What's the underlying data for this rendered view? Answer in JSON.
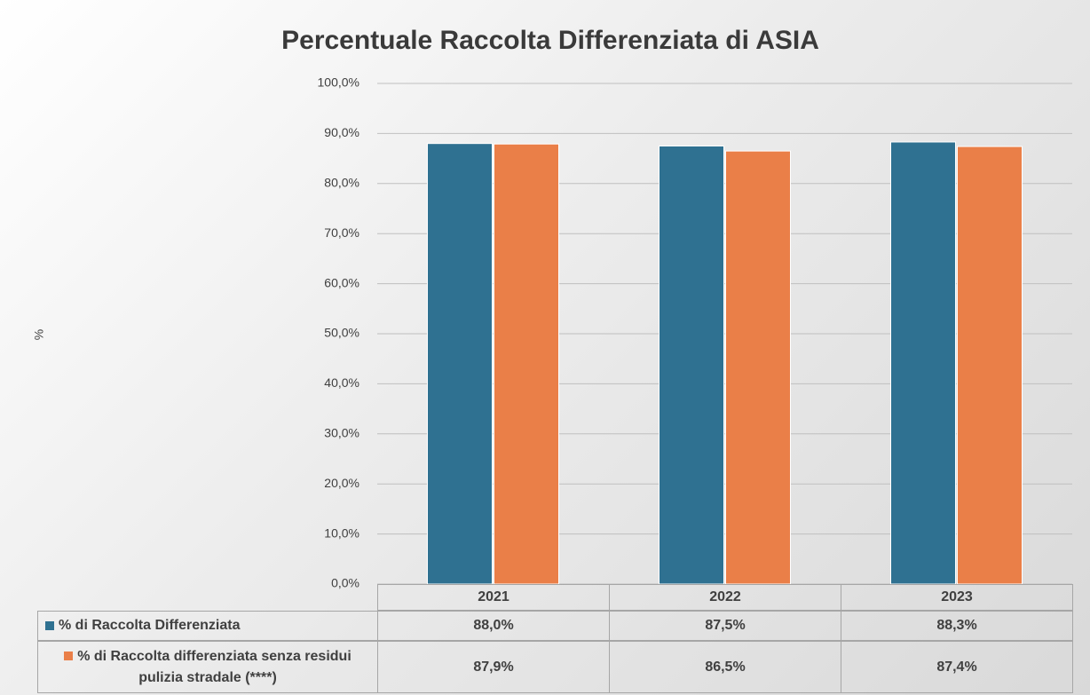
{
  "chart_data": {
    "type": "bar",
    "title": "Percentuale Raccolta Differenziata di ASIA",
    "ylabel": "%",
    "categories": [
      "2021",
      "2022",
      "2023"
    ],
    "series": [
      {
        "name": "% di Raccolta Differenziata",
        "color": "#2f7191",
        "values": [
          88.0,
          87.5,
          88.3
        ],
        "value_labels": [
          "88,0%",
          "87,5%",
          "88,3%"
        ]
      },
      {
        "name": "% di Raccolta differenziata senza residui pulizia stradale (****)",
        "color": "#ea7f48",
        "values": [
          87.9,
          86.5,
          87.4
        ],
        "value_labels": [
          "87,9%",
          "86,5%",
          "87,4%"
        ]
      }
    ],
    "ylim": [
      0,
      100
    ],
    "yticks": [
      {
        "value": 0,
        "label": "0,0%"
      },
      {
        "value": 10,
        "label": "10,0%"
      },
      {
        "value": 20,
        "label": "20,0%"
      },
      {
        "value": 30,
        "label": "30,0%"
      },
      {
        "value": 40,
        "label": "40,0%"
      },
      {
        "value": 50,
        "label": "50,0%"
      },
      {
        "value": 60,
        "label": "60,0%"
      },
      {
        "value": 70,
        "label": "70,0%"
      },
      {
        "value": 80,
        "label": "80,0%"
      },
      {
        "value": 90,
        "label": "90,0%"
      },
      {
        "value": 100,
        "label": "100,0%"
      }
    ],
    "grid": true
  }
}
